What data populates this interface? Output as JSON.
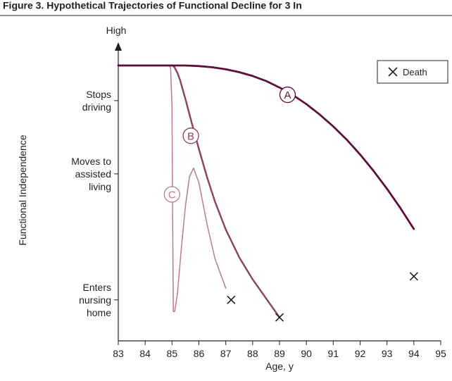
{
  "figure_caption": "Figure 3. Hypothetical Trajectories of Functional Decline for 3 In",
  "chart_data": {
    "type": "line",
    "title": "",
    "xlabel": "Age, y",
    "ylabel": "Functional Independence",
    "y_top_label": "High",
    "xlim": [
      83,
      95
    ],
    "x_ticks": [
      83,
      84,
      85,
      86,
      87,
      88,
      89,
      90,
      91,
      92,
      93,
      94,
      95
    ],
    "ylim": [
      0,
      100
    ],
    "y_categories": [
      {
        "lines": [
          "Stops",
          "driving"
        ],
        "value": 82
      },
      {
        "lines": [
          "Moves to",
          "assisted",
          "living"
        ],
        "value": 57
      },
      {
        "lines": [
          "Enters",
          "nursing",
          "home"
        ],
        "value": 14
      }
    ],
    "legend": {
      "label": "Death",
      "marker": "x-icon",
      "position": "top-right"
    },
    "series": [
      {
        "name": "A",
        "color": "#5b1038",
        "x": [
          83,
          84,
          85,
          85.5,
          86,
          86.5,
          87,
          87.5,
          88,
          88.5,
          89,
          89.5,
          90,
          90.5,
          91,
          91.5,
          92,
          92.5,
          93,
          93.5,
          94
        ],
        "y": [
          94,
          94,
          94,
          94,
          93.8,
          93.4,
          92.7,
          91.7,
          90.4,
          88.7,
          86.5,
          83.9,
          80.8,
          77.2,
          73.2,
          68.7,
          63.6,
          58.0,
          51.9,
          45.3,
          38.2
        ],
        "label_at": [
          89.3,
          84
        ],
        "death": [
          94,
          22
        ]
      },
      {
        "name": "B",
        "color": "#8e3f65",
        "x": [
          83,
          84,
          85,
          85.05,
          85.1,
          85.2,
          85.3,
          85.5,
          85.7,
          86,
          86.3,
          86.6,
          87,
          87.5,
          88,
          88.5,
          89
        ],
        "y": [
          94,
          94,
          94,
          93.8,
          93.3,
          91.5,
          89,
          82.5,
          75.5,
          65.5,
          56,
          47.5,
          38,
          28.5,
          21,
          14.5,
          8
        ],
        "label_at": [
          85.7,
          70
        ],
        "death": [
          89,
          8
        ]
      },
      {
        "name": "C",
        "color": "#b97a96",
        "x": [
          83,
          84,
          84.9,
          84.95,
          85,
          85.02,
          85.05,
          85.1,
          85.2,
          85.35,
          85.5,
          85.65,
          85.8,
          86,
          86.3,
          86.6,
          87
        ],
        "y": [
          94,
          94,
          94,
          93,
          80,
          45,
          10,
          10,
          16,
          32,
          46,
          56,
          59,
          54,
          40,
          28,
          18
        ],
        "label_at": [
          85.0,
          50
        ],
        "death": [
          87.2,
          14
        ]
      }
    ]
  }
}
